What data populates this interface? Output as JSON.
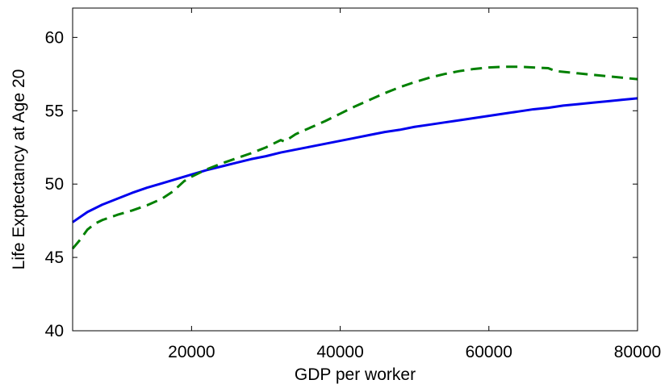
{
  "chart_data": {
    "type": "line",
    "title": "",
    "xlabel": "GDP per worker",
    "ylabel": "Life Exptectancy at Age 20",
    "xlim": [
      4000,
      80000
    ],
    "ylim": [
      40,
      62
    ],
    "xticks": [
      20000,
      40000,
      60000,
      80000
    ],
    "yticks": [
      40,
      45,
      50,
      55,
      60
    ],
    "xtick_labels": [
      "20000",
      "40000",
      "60000",
      "80000"
    ],
    "ytick_labels": [
      "40",
      "45",
      "50",
      "55",
      "60"
    ],
    "grid": false,
    "legend": "none",
    "series": [
      {
        "style": "solid",
        "color": "#0000ee",
        "points": [
          [
            4000,
            47.4
          ],
          [
            6000,
            48.1
          ],
          [
            8000,
            48.6
          ],
          [
            10000,
            49.0
          ],
          [
            12000,
            49.4
          ],
          [
            14000,
            49.75
          ],
          [
            16000,
            50.05
          ],
          [
            18000,
            50.35
          ],
          [
            20000,
            50.65
          ],
          [
            22000,
            50.95
          ],
          [
            24000,
            51.2
          ],
          [
            26000,
            51.45
          ],
          [
            28000,
            51.7
          ],
          [
            30000,
            51.9
          ],
          [
            32000,
            52.15
          ],
          [
            34000,
            52.35
          ],
          [
            36000,
            52.55
          ],
          [
            38000,
            52.75
          ],
          [
            40000,
            52.95
          ],
          [
            42000,
            53.15
          ],
          [
            44000,
            53.35
          ],
          [
            46000,
            53.55
          ],
          [
            48000,
            53.7
          ],
          [
            50000,
            53.9
          ],
          [
            52000,
            54.05
          ],
          [
            54000,
            54.2
          ],
          [
            56000,
            54.35
          ],
          [
            58000,
            54.5
          ],
          [
            60000,
            54.65
          ],
          [
            62000,
            54.8
          ],
          [
            64000,
            54.95
          ],
          [
            66000,
            55.1
          ],
          [
            68000,
            55.2
          ],
          [
            70000,
            55.35
          ],
          [
            72000,
            55.45
          ],
          [
            74000,
            55.55
          ],
          [
            76000,
            55.65
          ],
          [
            78000,
            55.75
          ],
          [
            80000,
            55.85
          ]
        ]
      },
      {
        "style": "dashed",
        "color": "#008000",
        "points": [
          [
            4000,
            45.6
          ],
          [
            5000,
            46.2
          ],
          [
            6000,
            46.9
          ],
          [
            7000,
            47.3
          ],
          [
            8000,
            47.55
          ],
          [
            10000,
            47.9
          ],
          [
            12000,
            48.2
          ],
          [
            14000,
            48.55
          ],
          [
            16000,
            49.0
          ],
          [
            17500,
            49.5
          ],
          [
            19000,
            50.2
          ],
          [
            20000,
            50.5
          ],
          [
            22000,
            51.0
          ],
          [
            24000,
            51.4
          ],
          [
            26000,
            51.75
          ],
          [
            28000,
            52.1
          ],
          [
            30000,
            52.5
          ],
          [
            32000,
            53.0
          ],
          [
            32500,
            52.9
          ],
          [
            34000,
            53.4
          ],
          [
            36000,
            53.85
          ],
          [
            38000,
            54.3
          ],
          [
            40000,
            54.8
          ],
          [
            42000,
            55.3
          ],
          [
            44000,
            55.75
          ],
          [
            46000,
            56.2
          ],
          [
            48000,
            56.6
          ],
          [
            50000,
            56.95
          ],
          [
            52000,
            57.25
          ],
          [
            54000,
            57.5
          ],
          [
            56000,
            57.7
          ],
          [
            58000,
            57.85
          ],
          [
            60000,
            57.95
          ],
          [
            62000,
            58.0
          ],
          [
            64000,
            58.0
          ],
          [
            66000,
            57.95
          ],
          [
            68000,
            57.9
          ],
          [
            69000,
            57.7
          ],
          [
            72000,
            57.55
          ],
          [
            76000,
            57.35
          ],
          [
            80000,
            57.15
          ]
        ]
      }
    ]
  }
}
